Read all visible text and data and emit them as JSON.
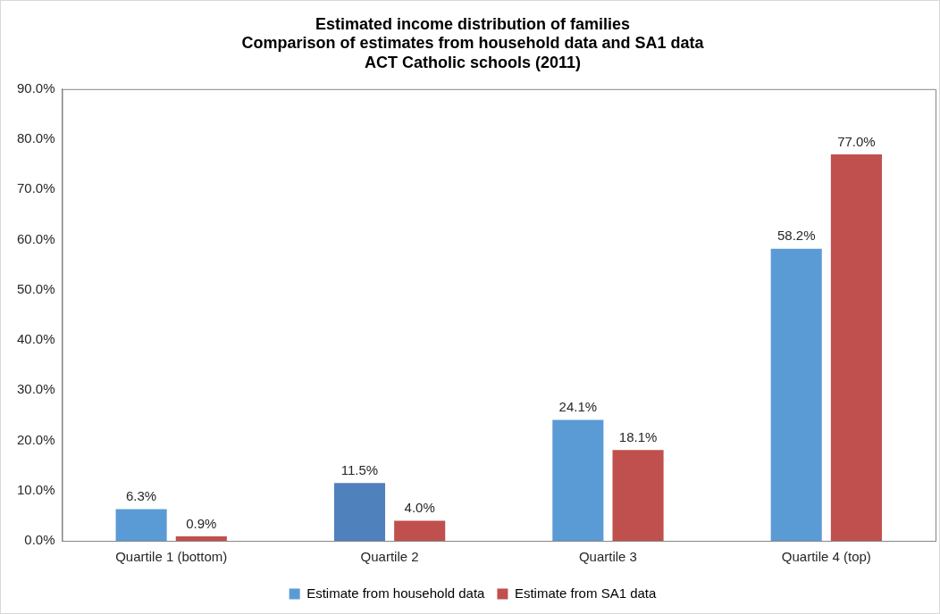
{
  "chart_data": {
    "type": "bar",
    "title": "Estimated income distribution of families",
    "subtitle": "Comparison of estimates from household data and SA1 data\nACT Catholic schools (2011)",
    "categories": [
      "Quartile 1 (bottom)",
      "Quartile 2",
      "Quartile 3",
      "Quartile 4 (top)"
    ],
    "series": [
      {
        "name": "Estimate from household data",
        "color": "#5b9bd5",
        "colors": [
          "#5b9bd5",
          "#4f81bd",
          "#5b9bd5",
          "#5b9bd5"
        ],
        "values": [
          6.3,
          11.5,
          24.1,
          58.2
        ],
        "value_labels": [
          "6.3%",
          "11.5%",
          "24.1%",
          "58.2%"
        ]
      },
      {
        "name": "Estimate from SA1 data",
        "color": "#c0504d",
        "values": [
          0.9,
          4.0,
          18.1,
          77.0
        ],
        "value_labels": [
          "0.9%",
          "4.0%",
          "18.1%",
          "77.0%"
        ]
      }
    ],
    "ylim": [
      0,
      90
    ],
    "yticks": [
      {
        "value": 0,
        "label": "0.0%"
      },
      {
        "value": 10,
        "label": "10.0%"
      },
      {
        "value": 20,
        "label": "20.0%"
      },
      {
        "value": 30,
        "label": "30.0%"
      },
      {
        "value": 40,
        "label": "40.0%"
      },
      {
        "value": 50,
        "label": "50.0%"
      },
      {
        "value": 60,
        "label": "60.0%"
      },
      {
        "value": 70,
        "label": "70.0%"
      },
      {
        "value": 80,
        "label": "80.0%"
      },
      {
        "value": 90,
        "label": "90.0%"
      }
    ],
    "grid": false,
    "legend": "bottom"
  }
}
